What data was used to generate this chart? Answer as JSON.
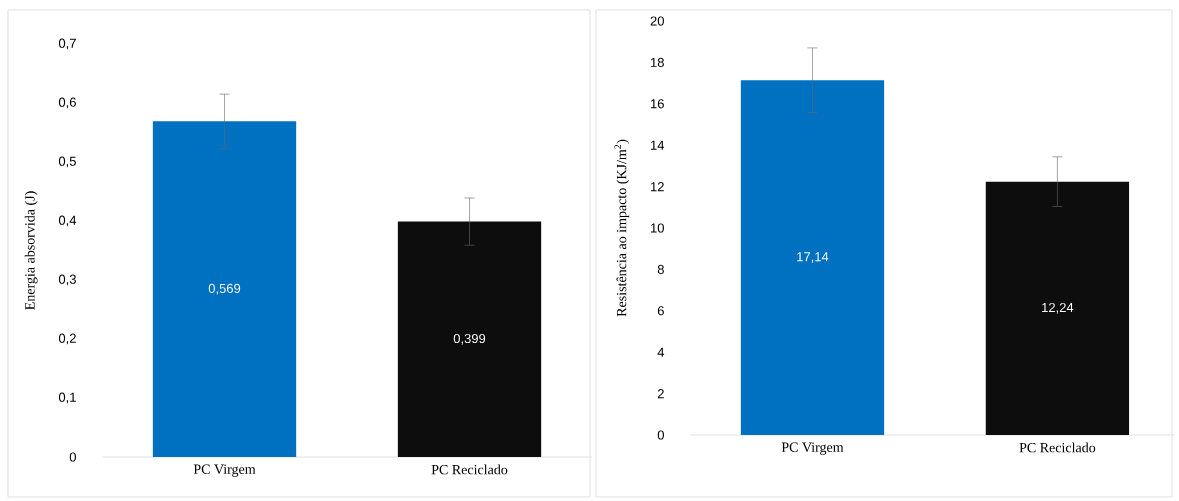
{
  "chart_data": [
    {
      "type": "bar",
      "categories": [
        "PC Virgem",
        "PC Reciclado"
      ],
      "values": [
        0.569,
        0.399
      ],
      "colors": [
        "#0070c0",
        "#0d0d0d"
      ],
      "errors": [
        0.046,
        0.04
      ],
      "value_labels": [
        "0,569",
        "0,399"
      ],
      "ylabel": "Energia absorvida (J)",
      "ylim": [
        0,
        0.7
      ],
      "yticks": [
        0,
        {
          "value": 0.1,
          "label": "0,1"
        },
        {
          "value": 0.2,
          "label": "0,2"
        },
        {
          "value": 0.3,
          "label": "0,3"
        },
        {
          "value": 0.4,
          "label": "0,4"
        },
        {
          "value": 0.5,
          "label": "0,5"
        },
        {
          "value": 0.6,
          "label": "0,6"
        },
        {
          "value": 0.7,
          "label": "0,7"
        }
      ]
    },
    {
      "type": "bar",
      "categories": [
        "PC Virgem",
        "PC Reciclado"
      ],
      "values": [
        17.14,
        12.24
      ],
      "colors": [
        "#0070c0",
        "#0d0d0d"
      ],
      "errors": [
        1.56,
        1.2
      ],
      "value_labels": [
        "17,14",
        "12,24"
      ],
      "ylabel": "Resistência ao impacto (KJ/m$^{2}$)",
      "ylim": [
        0,
        20
      ],
      "yticks": [
        0,
        2,
        4,
        6,
        8,
        10,
        12,
        14,
        16,
        18,
        20
      ]
    }
  ]
}
